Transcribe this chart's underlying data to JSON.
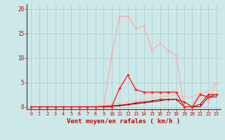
{
  "x": [
    0,
    1,
    2,
    3,
    4,
    5,
    6,
    7,
    8,
    9,
    10,
    11,
    12,
    13,
    14,
    15,
    16,
    17,
    18,
    19,
    20,
    21,
    22,
    23
  ],
  "line1": [
    0,
    0,
    0,
    0,
    0,
    0,
    0,
    0,
    0,
    0,
    10.5,
    18.5,
    18.5,
    16.0,
    16.5,
    11.5,
    13.0,
    11.5,
    10.5,
    0,
    0,
    3.0,
    1.0,
    5.0
  ],
  "line2": [
    0,
    0,
    0,
    0,
    0,
    0,
    0,
    0,
    0,
    0,
    0,
    3.8,
    6.5,
    3.5,
    3.0,
    3.0,
    3.0,
    3.0,
    3.0,
    0,
    0,
    2.5,
    2.0,
    2.5
  ],
  "line3": [
    0,
    0,
    0,
    0,
    0,
    0,
    0.1,
    0.1,
    0.2,
    0.3,
    0.5,
    0.7,
    1.0,
    1.2,
    1.5,
    1.8,
    2.0,
    2.2,
    2.5,
    2.0,
    2.0,
    3.0,
    3.0,
    5.0
  ],
  "line4": [
    0,
    0,
    0,
    0,
    0,
    0,
    0,
    0,
    0,
    0.1,
    0.2,
    0.3,
    0.5,
    0.8,
    1.0,
    1.2,
    1.5,
    1.5,
    1.5,
    1.0,
    0,
    0.5,
    2.5,
    2.5
  ],
  "line5": [
    0,
    0,
    0,
    0,
    0,
    0,
    0,
    0,
    0,
    0,
    0.1,
    0.2,
    0.4,
    0.6,
    0.8,
    1.0,
    1.2,
    1.5,
    1.5,
    0,
    0,
    0,
    2.0,
    2.0
  ],
  "bg_color": "#cce8e8",
  "grid_color": "#aacccc",
  "line1_color": "#ffaaaa",
  "line2_color": "#ff2222",
  "line3_color": "#ffbbbb",
  "line4_color": "#cc0000",
  "line5_color": "#880000",
  "axis_color": "#cc0000",
  "spine_color": "#555555",
  "xlabel": "Vent moyen/en rafales ( km/h )",
  "ylabel_ticks": [
    0,
    5,
    10,
    15,
    20
  ],
  "xlim": [
    -0.5,
    23.5
  ],
  "ylim": [
    -0.5,
    21
  ]
}
